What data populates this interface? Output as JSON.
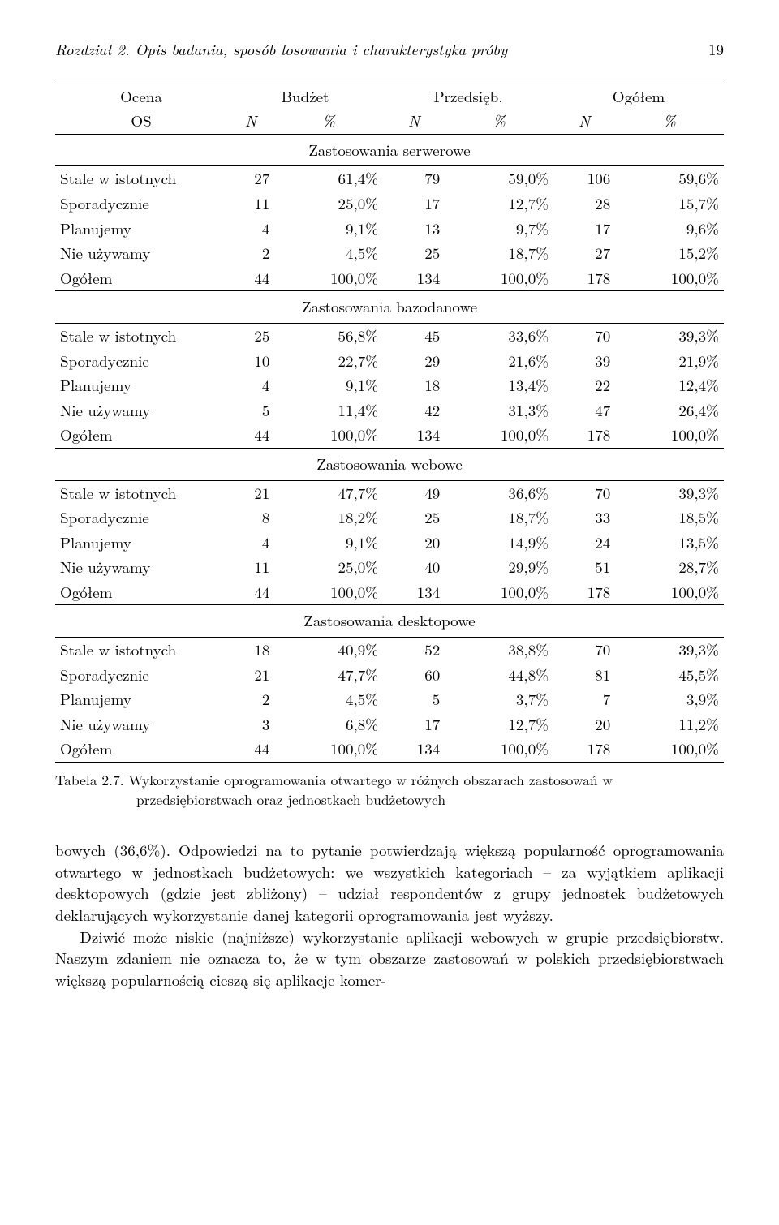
{
  "running_head": {
    "left": "Rozdział 2. Opis badania, sposób losowania i charakterystyka próby",
    "page": "19"
  },
  "table": {
    "head": {
      "ocena": "Ocena",
      "os": "OS",
      "budzet": "Budżet",
      "przedsieb": "Przedsięb.",
      "ogolem": "Ogółem",
      "N": "N",
      "pct": "%"
    },
    "sections": [
      {
        "title": "Zastosowania serwerowe",
        "rows": [
          {
            "label": "Stale w istotnych",
            "c": [
              27,
              "61,4%",
              79,
              "59,0%",
              106,
              "59,6%"
            ]
          },
          {
            "label": "Sporadycznie",
            "c": [
              11,
              "25,0%",
              17,
              "12,7%",
              28,
              "15,7%"
            ]
          },
          {
            "label": "Planujemy",
            "c": [
              4,
              "9,1%",
              13,
              "9,7%",
              17,
              "9,6%"
            ]
          },
          {
            "label": "Nie używamy",
            "c": [
              2,
              "4,5%",
              25,
              "18,7%",
              27,
              "15,2%"
            ]
          },
          {
            "label": "Ogółem",
            "c": [
              44,
              "100,0%",
              134,
              "100,0%",
              178,
              "100,0%"
            ]
          }
        ]
      },
      {
        "title": "Zastosowania bazodanowe",
        "rows": [
          {
            "label": "Stale w istotnych",
            "c": [
              25,
              "56,8%",
              45,
              "33,6%",
              70,
              "39,3%"
            ]
          },
          {
            "label": "Sporadycznie",
            "c": [
              10,
              "22,7%",
              29,
              "21,6%",
              39,
              "21,9%"
            ]
          },
          {
            "label": "Planujemy",
            "c": [
              4,
              "9,1%",
              18,
              "13,4%",
              22,
              "12,4%"
            ]
          },
          {
            "label": "Nie używamy",
            "c": [
              5,
              "11,4%",
              42,
              "31,3%",
              47,
              "26,4%"
            ]
          },
          {
            "label": "Ogółem",
            "c": [
              44,
              "100,0%",
              134,
              "100,0%",
              178,
              "100,0%"
            ]
          }
        ]
      },
      {
        "title": "Zastosowania webowe",
        "rows": [
          {
            "label": "Stale w istotnych",
            "c": [
              21,
              "47,7%",
              49,
              "36,6%",
              70,
              "39,3%"
            ]
          },
          {
            "label": "Sporadycznie",
            "c": [
              8,
              "18,2%",
              25,
              "18,7%",
              33,
              "18,5%"
            ]
          },
          {
            "label": "Planujemy",
            "c": [
              4,
              "9,1%",
              20,
              "14,9%",
              24,
              "13,5%"
            ]
          },
          {
            "label": "Nie używamy",
            "c": [
              11,
              "25,0%",
              40,
              "29,9%",
              51,
              "28,7%"
            ]
          },
          {
            "label": "Ogółem",
            "c": [
              44,
              "100,0%",
              134,
              "100,0%",
              178,
              "100,0%"
            ]
          }
        ]
      },
      {
        "title": "Zastosowania desktopowe",
        "rows": [
          {
            "label": "Stale w istotnych",
            "c": [
              18,
              "40,9%",
              52,
              "38,8%",
              70,
              "39,3%"
            ]
          },
          {
            "label": "Sporadycznie",
            "c": [
              21,
              "47,7%",
              60,
              "44,8%",
              81,
              "45,5%"
            ]
          },
          {
            "label": "Planujemy",
            "c": [
              2,
              "4,5%",
              5,
              "3,7%",
              7,
              "3,9%"
            ]
          },
          {
            "label": "Nie używamy",
            "c": [
              3,
              "6,8%",
              17,
              "12,7%",
              20,
              "11,2%"
            ]
          },
          {
            "label": "Ogółem",
            "c": [
              44,
              "100,0%",
              134,
              "100,0%",
              178,
              "100,0%"
            ]
          }
        ]
      }
    ]
  },
  "caption": {
    "label": "Tabela 2.7.",
    "text": "Wykorzystanie oprogramowania otwartego w różnych obszarach zastosowań w przedsiębiorstwach oraz jednostkach budżetowych"
  },
  "paragraphs": [
    "bowych (36,6%). Odpowiedzi na to pytanie potwierdzają większą popularność oprogramowania otwartego w jednostkach budżetowych: we wszystkich kategoriach – za wyjątkiem aplikacji desktopowych (gdzie jest zbliżony) – udział respondentów z grupy jednostek budżetowych deklarujących wykorzystanie danej kategorii oprogramowania jest wyższy.",
    "Dziwić może niskie (najniższe) wykorzystanie aplikacji webowych w grupie przedsiębiorstw. Naszym zdaniem nie oznacza to, że w tym obszarze zastosowań w polskich przedsiębiorstwach większą popularnością cieszą się aplikacje komer-"
  ]
}
